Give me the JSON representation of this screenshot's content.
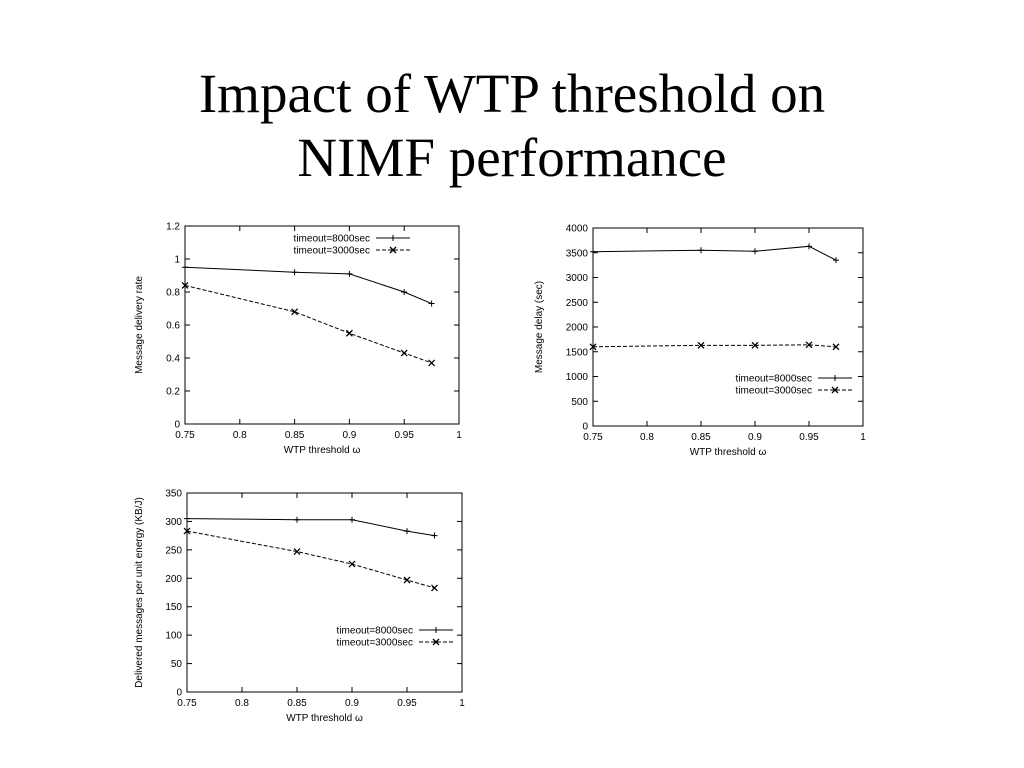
{
  "slide": {
    "title_line1": "Impact of WTP threshold on",
    "title_line2": "NIMF performance"
  },
  "chart_data": [
    {
      "type": "line",
      "xlabel": "WTP threshold ω",
      "ylabel": "Message delivery rate",
      "xlim": [
        0.75,
        1
      ],
      "ylim": [
        0,
        1.2
      ],
      "xticks": [
        "0.75",
        "0.8",
        "0.85",
        "0.9",
        "0.95",
        "1"
      ],
      "yticks": [
        "0",
        "0.2",
        "0.4",
        "0.6",
        "0.8",
        "1",
        "1.2"
      ],
      "legend_position": "top-right",
      "grid": false,
      "series": [
        {
          "name": "timeout=8000sec",
          "marker": "+",
          "dash": "solid",
          "x": [
            0.75,
            0.85,
            0.9,
            0.95,
            0.975
          ],
          "values": [
            0.95,
            0.92,
            0.91,
            0.8,
            0.73
          ]
        },
        {
          "name": "timeout=3000sec",
          "marker": "x",
          "dash": "dashed",
          "x": [
            0.75,
            0.85,
            0.9,
            0.95,
            0.975
          ],
          "values": [
            0.84,
            0.68,
            0.55,
            0.43,
            0.37
          ]
        }
      ]
    },
    {
      "type": "line",
      "xlabel": "WTP threshold ω",
      "ylabel": "Message delay (sec)",
      "xlim": [
        0.75,
        1
      ],
      "ylim": [
        0,
        4000
      ],
      "xticks": [
        "0.75",
        "0.8",
        "0.85",
        "0.9",
        "0.95",
        "1"
      ],
      "yticks": [
        "0",
        "500",
        "1000",
        "1500",
        "2000",
        "2500",
        "3000",
        "3500",
        "4000"
      ],
      "legend_position": "lower-right",
      "grid": false,
      "series": [
        {
          "name": "timeout=8000sec",
          "marker": "+",
          "dash": "solid",
          "x": [
            0.75,
            0.85,
            0.9,
            0.95,
            0.975
          ],
          "values": [
            3520,
            3550,
            3530,
            3630,
            3350
          ]
        },
        {
          "name": "timeout=3000sec",
          "marker": "x",
          "dash": "dashed",
          "x": [
            0.75,
            0.85,
            0.9,
            0.95,
            0.975
          ],
          "values": [
            1600,
            1630,
            1630,
            1640,
            1600
          ]
        }
      ]
    },
    {
      "type": "line",
      "xlabel": "WTP threshold ω",
      "ylabel": "Delivered messages per unit energy (KB/J)",
      "xlim": [
        0.75,
        1
      ],
      "ylim": [
        0,
        350
      ],
      "xticks": [
        "0.75",
        "0.8",
        "0.85",
        "0.9",
        "0.95",
        "1"
      ],
      "yticks": [
        "0",
        "50",
        "100",
        "150",
        "200",
        "250",
        "300",
        "350"
      ],
      "legend_position": "lower-right",
      "grid": false,
      "series": [
        {
          "name": "timeout=8000sec",
          "marker": "+",
          "dash": "solid",
          "x": [
            0.75,
            0.85,
            0.9,
            0.95,
            0.975
          ],
          "values": [
            305,
            303,
            303,
            283,
            275
          ]
        },
        {
          "name": "timeout=3000sec",
          "marker": "x",
          "dash": "dashed",
          "x": [
            0.75,
            0.85,
            0.9,
            0.95,
            0.975
          ],
          "values": [
            283,
            247,
            225,
            197,
            183
          ]
        }
      ]
    }
  ]
}
